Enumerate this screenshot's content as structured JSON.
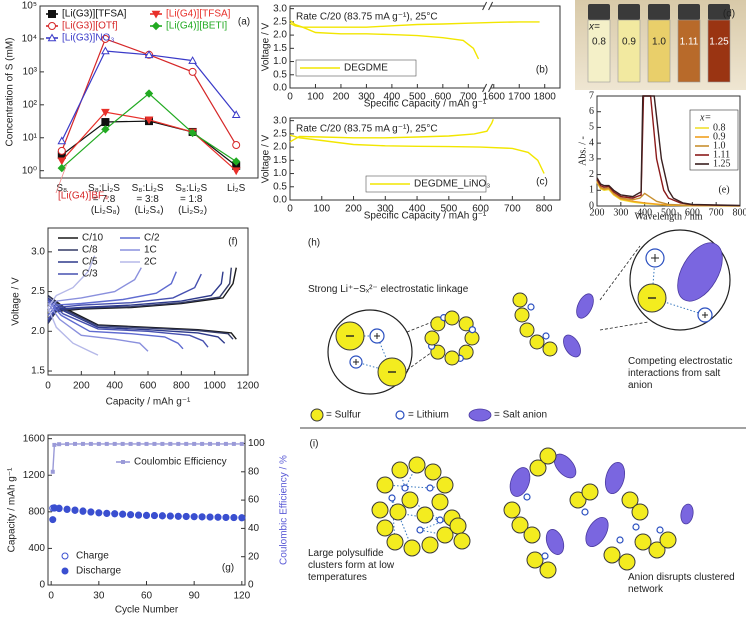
{
  "chart_data": [
    {
      "type": "line",
      "panel_label": "(a)",
      "y_label": "Concentration of S (mM)",
      "categories": [
        "S₈",
        "S₈:Li₂S = 7:8 (Li₂S₈)",
        "S₈:Li₂S = 3:8 (Li₂S₄)",
        "S₈:Li₂S = 1:8 (Li₂S₂)",
        "Li₂S"
      ],
      "ylog": true,
      "ylim": [
        0.6,
        100000
      ],
      "yticks": [
        {
          "value": 1,
          "label": "10⁰"
        },
        {
          "value": 10,
          "label": "10¹"
        },
        {
          "value": 100,
          "label": "10²"
        },
        {
          "value": 1000,
          "label": "10³"
        },
        {
          "value": 10000,
          "label": "10⁴"
        },
        {
          "value": 100000,
          "label": "10⁵"
        }
      ],
      "series": [
        {
          "name": "[Li(G3)][TFSA]",
          "color": "#111111",
          "marker": "square",
          "values": [
            3,
            30,
            32,
            15,
            1.4
          ]
        },
        {
          "name": "[Li(G3)][OTf]",
          "color": "#d62728",
          "marker": "circle-open",
          "values": [
            4,
            10000,
            3300,
            1000,
            6
          ]
        },
        {
          "name": "[Li(G3)]NO₃",
          "color": "#3a3ac8",
          "marker": "triangle-open",
          "values": [
            8,
            4300,
            3300,
            2200,
            50
          ]
        },
        {
          "name": "[Li(G4)][TFSA]",
          "color": "#e8302a",
          "marker": "triangle-down",
          "values": [
            2,
            60,
            35,
            15,
            1
          ]
        },
        {
          "name": "[Li(G4)][BETI]",
          "color": "#22aa22",
          "marker": "diamond",
          "values": [
            1.2,
            18,
            220,
            14,
            1.9
          ]
        }
      ],
      "annotations": [
        "[Li(G4)]BF₄"
      ]
    },
    {
      "type": "line",
      "panel_label": "(b)",
      "x_label": "Specific Capacity / mAh g⁻¹",
      "y_label": "Voltage / V",
      "annotations": [
        "Rate C/20 (83.75 mA g⁻¹), 25°C"
      ],
      "xlim": [
        0,
        1860
      ],
      "xbreak": [
        760,
        1560
      ],
      "xticks": [
        0,
        100,
        200,
        300,
        400,
        500,
        600,
        700,
        1600,
        1700,
        1800
      ],
      "ylim": [
        0,
        3.1
      ],
      "yticks": [
        {
          "value": 0,
          "label": "0.0"
        },
        0.5,
        {
          "value": 1,
          "label": "1.0"
        },
        1.5,
        {
          "value": 2,
          "label": "2.0"
        },
        2.5,
        {
          "value": 3,
          "label": "3.0"
        }
      ],
      "series": [
        {
          "name": "DEGDME",
          "color": "#f2e600",
          "x": [
            0,
            20,
            50,
            100,
            200,
            300,
            400,
            500,
            600,
            680,
            720,
            740
          ],
          "values": [
            2.45,
            2.35,
            2.3,
            2.1,
            2.05,
            2.05,
            2.02,
            1.98,
            1.9,
            1.8,
            1.5,
            1.1
          ]
        },
        {
          "color": "#f2e600",
          "x": [
            0,
            20,
            50,
            100,
            200,
            300,
            400,
            500,
            600,
            700,
            1600,
            1700,
            1780
          ],
          "values": [
            2.55,
            2.4,
            2.3,
            2.3,
            2.3,
            2.3,
            2.35,
            2.4,
            2.42,
            2.45,
            2.48,
            2.5,
            2.5
          ]
        }
      ]
    },
    {
      "type": "line",
      "panel_label": "(c)",
      "x_label": "Specific Capacity / mAh g⁻¹",
      "y_label": "Voltage / V",
      "annotations": [
        "Rate C/20 (83.75 mA g⁻¹), 25°C"
      ],
      "xlim": [
        0,
        850
      ],
      "xticks": [
        0,
        100,
        200,
        300,
        400,
        500,
        600,
        700,
        800
      ],
      "ylim": [
        0,
        3.1
      ],
      "yticks": [
        {
          "value": 0,
          "label": "0.0"
        },
        0.5,
        {
          "value": 1,
          "label": "1.0"
        },
        1.5,
        {
          "value": 2,
          "label": "2.0"
        },
        2.5,
        {
          "value": 3,
          "label": "3.0"
        }
      ],
      "series": [
        {
          "name": "DEGDME_LiNO₃",
          "color": "#f2e600",
          "x": [
            0,
            30,
            100,
            200,
            300,
            400,
            500,
            600,
            700,
            750,
            780,
            800
          ],
          "values": [
            2.45,
            2.35,
            2.25,
            2.1,
            2.05,
            2.03,
            2.02,
            2.0,
            1.95,
            1.8,
            1.5,
            1.0
          ]
        },
        {
          "color": "#f2e600",
          "x": [
            0,
            30,
            100,
            200,
            300,
            400,
            500,
            580,
            620,
            635,
            640
          ],
          "values": [
            2.2,
            2.4,
            2.38,
            2.35,
            2.35,
            2.38,
            2.42,
            2.5,
            2.6,
            2.9,
            3.05
          ]
        }
      ]
    },
    {
      "type": "line",
      "panel_label": "(e)",
      "x_label": "Wavelength / nm",
      "y_label": "Abs. / -",
      "legend_title": "x=",
      "xlim": [
        200,
        800
      ],
      "xticks": [
        200,
        300,
        400,
        500,
        600,
        700,
        800
      ],
      "ylim": [
        0,
        7
      ],
      "yticks": [
        0,
        1,
        2,
        3,
        4,
        5,
        6,
        7
      ],
      "series": [
        {
          "name": "0.8",
          "color": "#f0e030",
          "x": [
            200,
            215,
            230,
            250,
            270,
            300,
            350,
            400,
            450,
            500,
            600,
            800
          ],
          "values": [
            1.5,
            1.1,
            1.0,
            1.05,
            0.7,
            0.4,
            0.25,
            0.15,
            0.1,
            0.05,
            0.02,
            0
          ]
        },
        {
          "name": "0.9",
          "color": "#f0a020",
          "x": [
            200,
            215,
            230,
            250,
            270,
            300,
            350,
            400,
            450,
            500,
            600,
            800
          ],
          "values": [
            1.55,
            1.15,
            1.05,
            1.1,
            0.75,
            0.45,
            0.3,
            0.2,
            0.12,
            0.06,
            0.03,
            0.01
          ]
        },
        {
          "name": "1.0",
          "color": "#c89030",
          "x": [
            200,
            215,
            230,
            250,
            270,
            300,
            350,
            380,
            400,
            420,
            450,
            500,
            600,
            800
          ],
          "values": [
            1.6,
            1.2,
            1.1,
            1.15,
            0.8,
            0.5,
            0.4,
            0.5,
            0.8,
            0.6,
            0.3,
            0.1,
            0.03,
            0.01
          ]
        },
        {
          "name": "1.11",
          "color": "#8b1a1a",
          "x": [
            200,
            215,
            230,
            250,
            270,
            300,
            350,
            385,
            395,
            425,
            450,
            480,
            500,
            550,
            600,
            800
          ],
          "values": [
            1.7,
            1.3,
            1.2,
            1.25,
            0.9,
            0.6,
            0.5,
            0.7,
            7,
            7,
            3,
            1,
            0.5,
            0.2,
            0.08,
            0.02
          ]
        },
        {
          "name": "1.25",
          "color": "#3a2020",
          "x": [
            200,
            215,
            230,
            250,
            270,
            300,
            350,
            385,
            392,
            440,
            470,
            500,
            520,
            560,
            600,
            800
          ],
          "values": [
            1.8,
            1.4,
            1.3,
            1.3,
            1.0,
            0.7,
            0.6,
            0.9,
            7,
            7,
            3,
            1,
            0.5,
            0.2,
            0.1,
            0.03
          ]
        }
      ]
    },
    {
      "type": "line",
      "panel_label": "(f)",
      "x_label": "Capacity / mAh g⁻¹",
      "y_label": "Voltage / V",
      "xlim": [
        0,
        1200
      ],
      "xticks": [
        0,
        200,
        400,
        600,
        800,
        1000,
        1200
      ],
      "ylim": [
        1.45,
        3.3
      ],
      "yticks": [
        1.5,
        {
          "value": 2,
          "label": "2.0"
        },
        2.5,
        {
          "value": 3,
          "label": "3.0"
        }
      ],
      "series": [
        {
          "name": "C/10",
          "color": "#1a1a1a",
          "x": [
            0,
            110,
            300,
            600,
            900,
            1100,
            1130
          ],
          "values": [
            2.45,
            2.28,
            2.08,
            2.05,
            2.02,
            1.98,
            1.9
          ]
        },
        {
          "color": "#1a1a1a",
          "x": [
            0,
            50,
            200,
            500,
            800,
            1050,
            1110,
            1130
          ],
          "values": [
            2.1,
            2.25,
            2.28,
            2.3,
            2.35,
            2.42,
            2.6,
            2.8
          ]
        },
        {
          "name": "C/8",
          "color": "#333a66",
          "x": [
            0,
            100,
            300,
            600,
            900,
            1080,
            1110
          ],
          "values": [
            2.45,
            2.27,
            2.07,
            2.04,
            2.01,
            1.97,
            1.9
          ]
        },
        {
          "color": "#333a66",
          "x": [
            0,
            50,
            200,
            500,
            800,
            1030,
            1090,
            1100
          ],
          "values": [
            2.1,
            2.26,
            2.29,
            2.31,
            2.36,
            2.43,
            2.6,
            2.8
          ]
        },
        {
          "name": "C/5",
          "color": "#2e3a8c",
          "x": [
            0,
            100,
            300,
            600,
            900,
            1020,
            1060
          ],
          "values": [
            2.42,
            2.25,
            2.05,
            2.02,
            1.98,
            1.93,
            1.85
          ]
        },
        {
          "color": "#2e3a8c",
          "x": [
            0,
            50,
            200,
            500,
            800,
            980,
            1040,
            1050
          ],
          "values": [
            2.12,
            2.28,
            2.3,
            2.33,
            2.38,
            2.45,
            2.6,
            2.75
          ]
        },
        {
          "name": "C/3",
          "color": "#4650b0",
          "x": [
            0,
            90,
            300,
            600,
            850,
            930,
            960
          ],
          "values": [
            2.4,
            2.22,
            2.03,
            2.0,
            1.95,
            1.88,
            1.8
          ]
        },
        {
          "color": "#4650b0",
          "x": [
            0,
            50,
            200,
            500,
            750,
            880,
            920
          ],
          "values": [
            2.15,
            2.3,
            2.33,
            2.36,
            2.42,
            2.55,
            2.72
          ]
        },
        {
          "name": "C/2",
          "color": "#5f6bd0",
          "x": [
            0,
            80,
            250,
            500,
            700,
            780,
            810
          ],
          "values": [
            2.38,
            2.2,
            2.0,
            1.97,
            1.93,
            1.85,
            1.78
          ]
        },
        {
          "color": "#5f6bd0",
          "x": [
            0,
            50,
            200,
            450,
            650,
            740,
            770
          ],
          "values": [
            2.2,
            2.33,
            2.35,
            2.4,
            2.48,
            2.6,
            2.75
          ]
        },
        {
          "name": "1C",
          "color": "#8a90dd",
          "x": [
            0,
            70,
            200,
            400,
            550,
            600
          ],
          "values": [
            2.35,
            2.15,
            1.95,
            1.9,
            1.85,
            1.75
          ]
        },
        {
          "color": "#8a90dd",
          "x": [
            0,
            50,
            200,
            400,
            520,
            560
          ],
          "values": [
            2.25,
            2.38,
            2.42,
            2.5,
            2.65,
            2.8
          ]
        },
        {
          "name": "2C",
          "color": "#b5b8e8",
          "x": [
            0,
            50,
            150,
            250,
            300
          ],
          "values": [
            2.3,
            2.05,
            1.85,
            1.75,
            1.7
          ]
        },
        {
          "color": "#b5b8e8",
          "x": [
            0,
            50,
            150,
            240,
            280
          ],
          "values": [
            2.3,
            2.45,
            2.55,
            2.75,
            2.95
          ]
        }
      ]
    },
    {
      "type": "line",
      "panel_label": "(g)",
      "x_label": "Cycle Number",
      "y_label": "Capacity / mAh g⁻¹",
      "y2_label": "Coulombic Efficiency / %",
      "xlim": [
        -2,
        122
      ],
      "xticks": [
        0,
        30,
        60,
        90,
        120
      ],
      "ylim": [
        0,
        1640
      ],
      "yticks": [
        0,
        400,
        800,
        1200,
        1600
      ],
      "y2lim": [
        0,
        106
      ],
      "y2ticks": [
        0,
        20,
        40,
        60,
        80,
        100
      ],
      "series": [
        {
          "name": "Charge",
          "color": "#3a4fd0",
          "marker": "circle-open",
          "line": false,
          "x": [
            1,
            2,
            5,
            10,
            15,
            20,
            25,
            30,
            35,
            40,
            45,
            50,
            55,
            60,
            65,
            70,
            75,
            80,
            85,
            90,
            95,
            100,
            105,
            110,
            115,
            120
          ],
          "values": [
            840,
            845,
            840,
            830,
            820,
            810,
            800,
            790,
            785,
            780,
            775,
            770,
            765,
            762,
            760,
            758,
            755,
            752,
            750,
            748,
            746,
            744,
            742,
            740,
            738,
            736
          ]
        },
        {
          "name": "Discharge",
          "color": "#3a4fd0",
          "marker": "circle",
          "line": false,
          "x": [
            1,
            2,
            5,
            10,
            15,
            20,
            25,
            30,
            35,
            40,
            45,
            50,
            55,
            60,
            65,
            70,
            75,
            80,
            85,
            90,
            95,
            100,
            105,
            110,
            115,
            120
          ],
          "values": [
            715,
            840,
            835,
            825,
            815,
            805,
            797,
            788,
            782,
            778,
            773,
            768,
            763,
            760,
            758,
            755,
            753,
            750,
            748,
            746,
            744,
            742,
            740,
            738,
            736,
            734
          ]
        },
        {
          "name": "Coulombic Efficiency",
          "color": "#9a9ad8",
          "marker": "dot",
          "axis": "y2",
          "x": [
            1,
            2,
            5,
            10,
            15,
            20,
            25,
            30,
            35,
            40,
            45,
            50,
            55,
            60,
            65,
            70,
            75,
            80,
            85,
            90,
            95,
            100,
            105,
            110,
            115,
            120
          ],
          "values": [
            80,
            99,
            99.5,
            99.6,
            99.7,
            99.7,
            99.7,
            99.7,
            99.7,
            99.7,
            99.7,
            99.7,
            99.7,
            99.7,
            99.7,
            99.7,
            99.7,
            99.7,
            99.7,
            99.7,
            99.7,
            99.7,
            99.7,
            99.7,
            99.7,
            99.7
          ]
        }
      ]
    }
  ],
  "photo_d": {
    "label": "(d)",
    "x_label": "x=",
    "samples": [
      "0.8",
      "0.9",
      "1.0",
      "1.11",
      "1.25"
    ]
  },
  "diagram_h": {
    "label": "(h)",
    "caption_left": "Strong Li⁺−Sₓ²⁻ electrostatic linkage",
    "caption_right": "Competing electrostatic interactions from salt anion",
    "legend": [
      "= Sulfur",
      "= Lithium",
      "= Salt anion"
    ]
  },
  "diagram_i": {
    "label": "(i)",
    "caption_left": "Large polysulfide clusters form at low temperatures",
    "caption_right": "Anion disrupts clustered network"
  }
}
